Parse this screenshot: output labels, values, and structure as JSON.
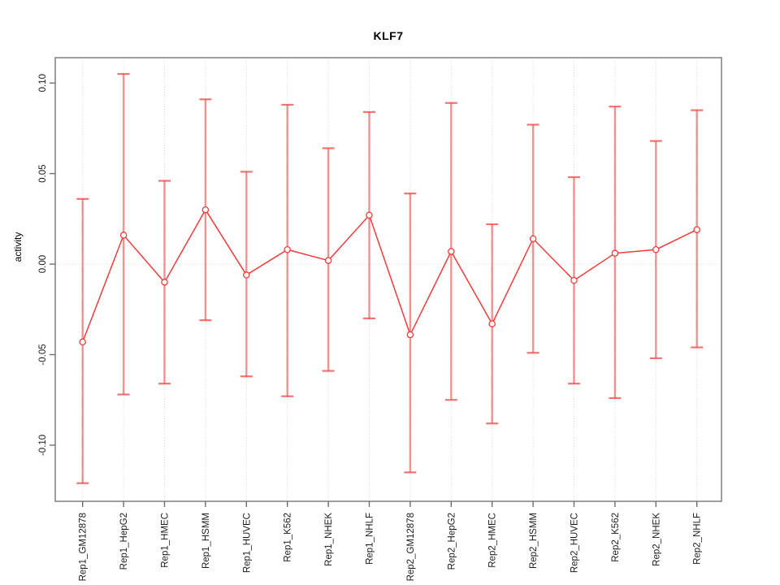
{
  "chart_data": {
    "type": "line",
    "subtype": "points-with-error-bars",
    "title": "KLF7",
    "xlabel": "",
    "ylabel": "activity",
    "categories": [
      "Rep1_GM12878",
      "Rep1_HepG2",
      "Rep1_HMEC",
      "Rep1_HSMM",
      "Rep1_HUVEC",
      "Rep1_K562",
      "Rep1_NHEK",
      "Rep1_NHLF",
      "Rep2_GM12878",
      "Rep2_HepG2",
      "Rep2_HMEC",
      "Rep2_HSMM",
      "Rep2_HUVEC",
      "Rep2_K562",
      "Rep2_NHEK",
      "Rep2_NHLF"
    ],
    "series": [
      {
        "name": "activity",
        "center": [
          -0.043,
          0.016,
          -0.01,
          0.03,
          -0.006,
          0.008,
          0.002,
          0.027,
          -0.039,
          0.007,
          -0.033,
          0.014,
          -0.009,
          0.006,
          0.008,
          0.019
        ],
        "lower": [
          -0.121,
          -0.072,
          -0.066,
          -0.031,
          -0.062,
          -0.073,
          -0.059,
          -0.03,
          -0.115,
          -0.075,
          -0.088,
          -0.049,
          -0.066,
          -0.074,
          -0.052,
          -0.046
        ],
        "upper": [
          0.036,
          0.105,
          0.046,
          0.091,
          0.051,
          0.088,
          0.064,
          0.084,
          0.039,
          0.089,
          0.022,
          0.077,
          0.048,
          0.087,
          0.068,
          0.085
        ]
      }
    ],
    "yticks": [
      -0.1,
      -0.05,
      0.0,
      0.05,
      0.1
    ],
    "ytick_labels": [
      "-0.10",
      "-0.05",
      "0.00",
      "0.05",
      "0.10"
    ],
    "ylim": [
      -0.131,
      0.114
    ],
    "grid": "dotted vertical line at each category, dotted horizontal line at 0",
    "legend": "none",
    "marker": "open-circle",
    "colors": {
      "line": "#f23b3b",
      "marker": "#f23b3b",
      "error_bar": "rgba(240,75,75,0.60)",
      "error_cap": "rgba(240,75,75,0.78)",
      "grid": "#d8d8d8",
      "zero_line": "#d8d8d8",
      "box": "#7f7f7f",
      "tick": "#6e6e6e",
      "tick_text": "#1c1c1c",
      "background": "#ffffff"
    }
  }
}
